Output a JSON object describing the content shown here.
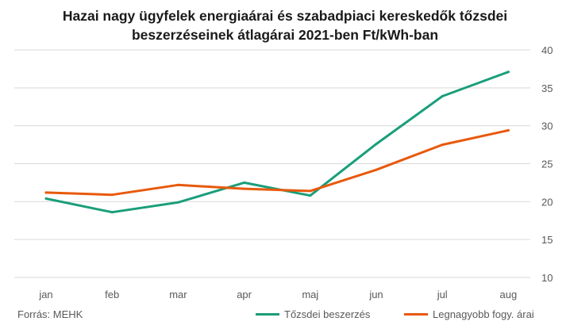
{
  "chart_data": {
    "type": "line",
    "title_line1": "Hazai nagy ügyfelek energiaárai és szabadpiaci kereskedők tőzsdei",
    "title_line2": "beszerzéseinek átlagárai 2021-ben Ft/kWh-ban",
    "categories": [
      "jan",
      "feb",
      "mar",
      "apr",
      "maj",
      "jun",
      "jul",
      "aug"
    ],
    "series": [
      {
        "name": "Tőzsdei beszerzés",
        "color": "#1a9e7a",
        "values": [
          20.4,
          18.6,
          19.9,
          22.5,
          20.8,
          27.6,
          33.9,
          37.1
        ]
      },
      {
        "name": "Legnagyobb fogy. árai",
        "color": "#e8590c",
        "values": [
          21.2,
          20.9,
          22.2,
          21.7,
          21.4,
          24.2,
          27.5,
          29.4
        ]
      }
    ],
    "ylim": [
      10,
      40
    ],
    "yticks": [
      10,
      15,
      20,
      25,
      30,
      35,
      40
    ],
    "y_axis_side": "right",
    "grid": true,
    "legend_position": "bottom-right"
  },
  "source": "Forrás: MEHK"
}
